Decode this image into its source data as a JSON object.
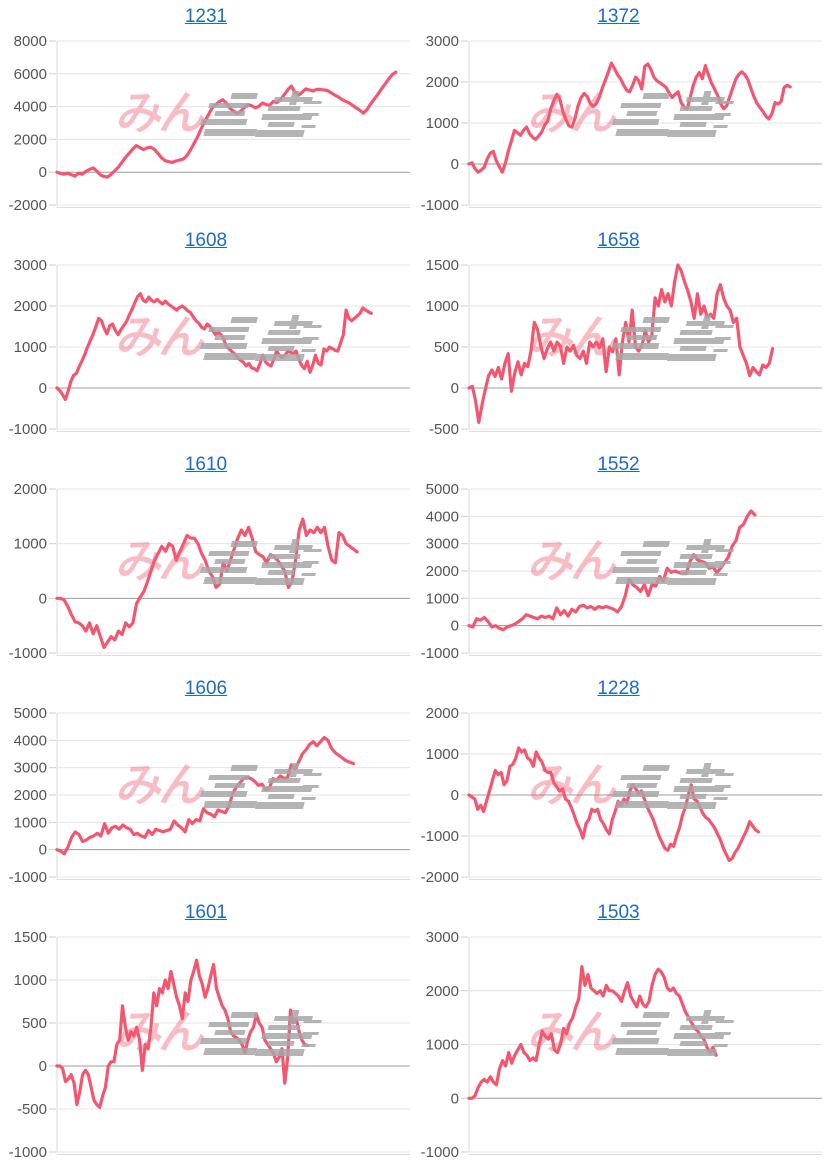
{
  "page": {
    "background": "#ffffff"
  },
  "style": {
    "line_color": "#f4566f",
    "line_width": 3.2,
    "grid_color": "#e4e4e4",
    "zero_line_color": "#9c9c9c",
    "axis_line_color": "#d8d8d8",
    "bottom_border_color": "#dcdcdc",
    "tick_label_color": "#555555",
    "title_link_color": "#1c6bc4",
    "watermark_pink_color": "rgba(240,95,115,0.42)",
    "watermark_gray_color": "#a7a7a7"
  },
  "watermark": {
    "text_pink": "みん"
  },
  "chart_data": [
    {
      "type": "line",
      "title": "1231",
      "xlabel": "",
      "ylabel": "",
      "ylim": [
        -2000,
        8000
      ],
      "yticks": [
        8000,
        6000,
        4000,
        2000,
        0,
        -2000
      ],
      "grid": true,
      "legend": "none",
      "x_fill": 0.96,
      "values": [
        0,
        -80,
        -120,
        -60,
        -160,
        -240,
        -60,
        -120,
        40,
        160,
        260,
        80,
        -160,
        -260,
        -300,
        -120,
        80,
        300,
        600,
        900,
        1150,
        1400,
        1620,
        1500,
        1380,
        1480,
        1530,
        1400,
        1150,
        880,
        700,
        640,
        600,
        680,
        740,
        800,
        1000,
        1350,
        1750,
        2150,
        2650,
        3100,
        3500,
        3900,
        4120,
        4300,
        4420,
        4200,
        3900,
        3720,
        3600,
        3720,
        3950,
        4120,
        4050,
        3920,
        4020,
        4220,
        4120,
        4080,
        4320,
        4250,
        4420,
        4720,
        5020,
        5250,
        4880,
        4700,
        4870,
        5080,
        5020,
        4950,
        5050,
        5050,
        5020,
        4980,
        4850,
        4700,
        4600,
        4430,
        4330,
        4230,
        4080,
        3920,
        3780,
        3600,
        3820,
        4150,
        4450,
        4750,
        5080,
        5380,
        5680,
        5950,
        6100
      ]
    },
    {
      "type": "line",
      "title": "1372",
      "xlabel": "",
      "ylabel": "",
      "ylim": [
        -1000,
        3000
      ],
      "yticks": [
        3000,
        2000,
        1000,
        0,
        -1000
      ],
      "grid": true,
      "legend": "none",
      "x_fill": 0.91,
      "values": [
        0,
        30,
        -120,
        -200,
        -150,
        -80,
        120,
        260,
        310,
        80,
        -60,
        -200,
        20,
        320,
        560,
        820,
        760,
        700,
        820,
        900,
        740,
        650,
        600,
        680,
        780,
        950,
        1050,
        1350,
        1550,
        1700,
        1580,
        1280,
        1080,
        930,
        900,
        1120,
        1420,
        1620,
        1720,
        1650,
        1480,
        1400,
        1470,
        1630,
        1850,
        2050,
        2250,
        2460,
        2330,
        2180,
        2080,
        1930,
        1800,
        1760,
        1920,
        2120,
        2030,
        1830,
        2380,
        2440,
        2320,
        2120,
        2030,
        1980,
        1930,
        1870,
        1740,
        1620,
        1700,
        1760,
        1500,
        1380,
        1340,
        1620,
        1920,
        2120,
        2230,
        2080,
        2400,
        2180,
        1980,
        1830,
        1680,
        1480,
        1350,
        1420,
        1630,
        1850,
        2060,
        2180,
        2250,
        2180,
        2060,
        1850,
        1650,
        1480,
        1380,
        1280,
        1160,
        1100,
        1230,
        1500,
        1460,
        1520,
        1870,
        1920,
        1880
      ]
    },
    {
      "type": "line",
      "title": "1608",
      "xlabel": "",
      "ylabel": "",
      "ylim": [
        -1000,
        3000
      ],
      "yticks": [
        3000,
        2000,
        1000,
        0,
        -1000
      ],
      "grid": true,
      "legend": "none",
      "x_fill": 0.89,
      "values": [
        0,
        -60,
        -160,
        -280,
        -80,
        160,
        310,
        360,
        520,
        660,
        820,
        1000,
        1160,
        1310,
        1500,
        1700,
        1640,
        1450,
        1320,
        1520,
        1560,
        1400,
        1300,
        1420,
        1520,
        1620,
        1780,
        1920,
        2080,
        2230,
        2300,
        2140,
        2100,
        2220,
        2140,
        2100,
        2160,
        2100,
        2050,
        2120,
        2050,
        2000,
        1950,
        1900,
        1960,
        2000,
        1950,
        1880,
        1840,
        1740,
        1640,
        1580,
        1480,
        1440,
        1560,
        1500,
        1400,
        1300,
        1360,
        1300,
        1180,
        1000,
        950,
        880,
        830,
        730,
        680,
        630,
        540,
        600,
        490,
        470,
        420,
        600,
        800,
        640,
        570,
        540,
        700,
        900,
        800,
        740,
        800,
        900,
        870,
        840,
        900,
        700,
        550,
        470,
        650,
        380,
        560,
        800,
        600,
        560,
        950,
        900,
        1000,
        960,
        920,
        900,
        1100,
        1300,
        1900,
        1700,
        1640,
        1700,
        1760,
        1820,
        1950,
        1900,
        1860,
        1820
      ]
    },
    {
      "type": "line",
      "title": "1658",
      "xlabel": "",
      "ylabel": "",
      "ylim": [
        -500,
        1500
      ],
      "yticks": [
        1500,
        1000,
        500,
        0,
        -500
      ],
      "grid": true,
      "legend": "none",
      "x_fill": 0.86,
      "values": [
        0,
        20,
        -150,
        -420,
        -200,
        -20,
        150,
        220,
        140,
        250,
        110,
        300,
        420,
        -40,
        180,
        320,
        160,
        300,
        260,
        450,
        800,
        710,
        510,
        360,
        480,
        560,
        450,
        560,
        510,
        300,
        500,
        450,
        520,
        400,
        360,
        450,
        300,
        560,
        500,
        560,
        490,
        600,
        200,
        500,
        440,
        600,
        160,
        560,
        800,
        560,
        950,
        500,
        450,
        520,
        700,
        560,
        640,
        1100,
        1000,
        1200,
        1050,
        1150,
        1000,
        1300,
        1500,
        1430,
        1300,
        1190,
        1050,
        850,
        1150,
        900,
        1000,
        860,
        900,
        850,
        1150,
        1260,
        1100,
        1000,
        950,
        800,
        850,
        500,
        400,
        300,
        150,
        250,
        200,
        160,
        280,
        250,
        300,
        480
      ]
    },
    {
      "type": "line",
      "title": "1610",
      "xlabel": "",
      "ylabel": "",
      "ylim": [
        -1000,
        2000
      ],
      "yticks": [
        2000,
        1000,
        0,
        -1000
      ],
      "grid": true,
      "legend": "none",
      "x_fill": 0.85,
      "values": [
        0,
        0,
        -30,
        -150,
        -300,
        -430,
        -450,
        -500,
        -600,
        -450,
        -650,
        -500,
        -700,
        -900,
        -800,
        -700,
        -760,
        -600,
        -660,
        -450,
        -520,
        -450,
        -100,
        20,
        120,
        300,
        500,
        700,
        820,
        950,
        860,
        1000,
        950,
        700,
        850,
        1000,
        1150,
        1100,
        1100,
        1000,
        820,
        700,
        500,
        400,
        200,
        260,
        650,
        500,
        700,
        900,
        1100,
        1250,
        1150,
        1300,
        1100,
        850,
        800,
        760,
        650,
        800,
        760,
        700,
        600,
        500,
        200,
        300,
        700,
        1250,
        1450,
        1150,
        1250,
        1200,
        1300,
        1200,
        1300,
        950,
        700,
        650,
        1200,
        1150,
        1000,
        950,
        900,
        850
      ]
    },
    {
      "type": "line",
      "title": "1552",
      "xlabel": "",
      "ylabel": "",
      "ylim": [
        -1000,
        5000
      ],
      "yticks": [
        5000,
        4000,
        3000,
        2000,
        1000,
        0,
        -1000
      ],
      "grid": true,
      "legend": "none",
      "x_fill": 0.81,
      "values": [
        0,
        -50,
        250,
        200,
        300,
        150,
        -50,
        0,
        -100,
        -150,
        -50,
        0,
        50,
        150,
        250,
        400,
        350,
        300,
        250,
        350,
        300,
        350,
        250,
        650,
        400,
        550,
        350,
        600,
        500,
        700,
        750,
        650,
        700,
        600,
        700,
        650,
        700,
        650,
        600,
        500,
        700,
        1100,
        1700,
        1500,
        1400,
        1250,
        1500,
        1100,
        1500,
        1450,
        1800,
        1650,
        2100,
        1950,
        2000,
        1950,
        1900,
        1900,
        2350,
        2600,
        2400,
        2350,
        2300,
        2100,
        2150,
        1950,
        2100,
        2300,
        2500,
        2900,
        3100,
        3600,
        3700,
        4000,
        4200,
        4050
      ]
    },
    {
      "type": "line",
      "title": "1606",
      "xlabel": "",
      "ylabel": "",
      "ylim": [
        -1000,
        5000
      ],
      "yticks": [
        5000,
        4000,
        3000,
        2000,
        1000,
        0,
        -1000
      ],
      "grid": true,
      "legend": "none",
      "x_fill": 0.84,
      "values": [
        0,
        -50,
        -150,
        100,
        450,
        650,
        550,
        300,
        350,
        450,
        500,
        600,
        500,
        950,
        600,
        800,
        850,
        750,
        900,
        800,
        750,
        550,
        600,
        500,
        450,
        700,
        550,
        750,
        700,
        650,
        700,
        750,
        1050,
        900,
        800,
        650,
        1100,
        950,
        1100,
        1050,
        1500,
        1350,
        1300,
        1200,
        1450,
        1400,
        1350,
        1600,
        2050,
        2300,
        2450,
        2600,
        2650,
        2600,
        2500,
        2350,
        2400,
        2200,
        2250,
        2600,
        2550,
        2700,
        2600,
        2650,
        3100,
        2950,
        3200,
        3500,
        3650,
        3850,
        3950,
        3800,
        3950,
        4100,
        4000,
        3700,
        3550,
        3450,
        3350,
        3250,
        3200,
        3150
      ]
    },
    {
      "type": "line",
      "title": "1228",
      "xlabel": "",
      "ylabel": "",
      "ylim": [
        -2000,
        2000
      ],
      "yticks": [
        2000,
        1000,
        0,
        -1000,
        -2000
      ],
      "grid": true,
      "legend": "none",
      "x_fill": 0.82,
      "values": [
        0,
        -50,
        -100,
        -350,
        -250,
        -400,
        -150,
        100,
        350,
        600,
        500,
        550,
        250,
        350,
        700,
        750,
        900,
        1150,
        1050,
        1100,
        900,
        850,
        700,
        1050,
        900,
        800,
        600,
        550,
        550,
        300,
        200,
        100,
        150,
        -100,
        -150,
        -300,
        -500,
        -700,
        -850,
        -1050,
        -700,
        -600,
        -350,
        -400,
        -350,
        -600,
        -700,
        -850,
        -950,
        -600,
        -400,
        -150,
        -250,
        -100,
        -200,
        100,
        250,
        150,
        50,
        100,
        -100,
        -300,
        -450,
        -600,
        -800,
        -1000,
        -1150,
        -1300,
        -1350,
        -1200,
        -1250,
        -1000,
        -800,
        -500,
        -300,
        0,
        250,
        -100,
        -150,
        -300,
        -450,
        -550,
        -600,
        -700,
        -800,
        -950,
        -1100,
        -1300,
        -1450,
        -1600,
        -1550,
        -1400,
        -1300,
        -1150,
        -1000,
        -850,
        -650,
        -750,
        -850,
        -900
      ]
    },
    {
      "type": "line",
      "title": "1601",
      "xlabel": "",
      "ylabel": "",
      "ylim": [
        -1000,
        1500
      ],
      "yticks": [
        1500,
        1000,
        500,
        0,
        -500,
        -1000
      ],
      "grid": true,
      "legend": "none",
      "x_fill": 0.71,
      "values": [
        0,
        0,
        -30,
        -180,
        -150,
        -100,
        -200,
        -450,
        -300,
        -100,
        -50,
        -100,
        -250,
        -400,
        -450,
        -480,
        -350,
        -250,
        0,
        50,
        50,
        250,
        300,
        700,
        450,
        300,
        400,
        350,
        450,
        300,
        -50,
        250,
        200,
        450,
        850,
        700,
        900,
        850,
        1000,
        900,
        1100,
        950,
        800,
        700,
        550,
        850,
        750,
        1000,
        1100,
        1230,
        1050,
        950,
        800,
        900,
        1050,
        1180,
        900,
        800,
        700,
        650,
        550,
        400,
        350,
        330,
        300,
        250,
        150,
        300,
        400,
        450,
        600,
        500,
        450,
        300,
        250,
        200,
        150,
        50,
        100,
        200,
        -200,
        100,
        650,
        500,
        550,
        400,
        300,
        250,
        240
      ]
    },
    {
      "type": "line",
      "title": "1503",
      "xlabel": "",
      "ylabel": "",
      "ylim": [
        -1000,
        3000
      ],
      "yticks": [
        3000,
        2000,
        1000,
        0,
        -1000
      ],
      "grid": true,
      "legend": "none",
      "x_fill": 0.7,
      "values": [
        0,
        0,
        50,
        200,
        300,
        350,
        300,
        400,
        300,
        250,
        550,
        700,
        600,
        850,
        650,
        800,
        900,
        1000,
        850,
        800,
        700,
        750,
        700,
        1000,
        1250,
        1150,
        1100,
        1200,
        900,
        850,
        1000,
        1300,
        1200,
        1400,
        1500,
        1700,
        1850,
        2450,
        2100,
        2300,
        2050,
        2000,
        1950,
        2000,
        1900,
        2100,
        2000,
        2000,
        1950,
        1900,
        1800,
        2000,
        2150,
        1900,
        1800,
        1700,
        1900,
        1750,
        1700,
        1800,
        2100,
        2300,
        2400,
        2350,
        2250,
        2050,
        2000,
        2050,
        1950,
        1900,
        1750,
        1600,
        1500,
        1400,
        1300,
        1250,
        1150,
        1100,
        950,
        850,
        950,
        800
      ]
    }
  ]
}
